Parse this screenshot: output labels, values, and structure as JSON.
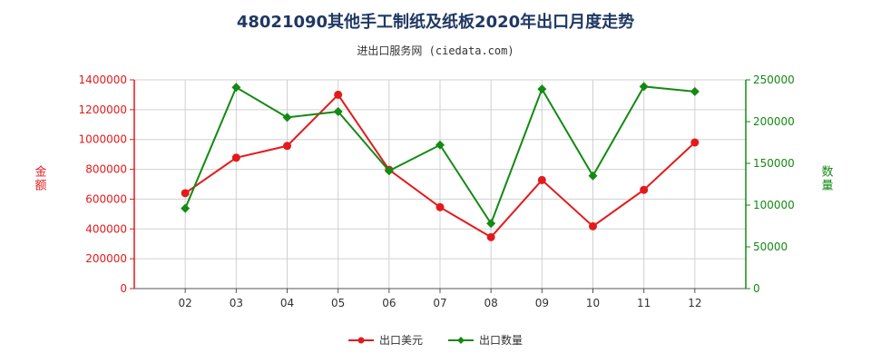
{
  "title": "48021090其他手工制纸及纸板2020年出口月度走势",
  "subtitle": "进出口服务网 (ciedata.com)",
  "colors": {
    "left_axis": "#e31a1c",
    "right_axis": "#138a13",
    "grid": "#d0d0d0",
    "title": "#1f3864"
  },
  "chart_data": {
    "type": "line",
    "categories": [
      "02",
      "03",
      "04",
      "05",
      "06",
      "07",
      "08",
      "09",
      "10",
      "11",
      "12"
    ],
    "series": [
      {
        "name": "出口美元",
        "axis": "left",
        "color": "#e31a1c",
        "marker": "circle",
        "values": [
          640000,
          878000,
          957000,
          1300000,
          797000,
          546000,
          345000,
          728000,
          418000,
          662000,
          980000
        ]
      },
      {
        "name": "出口数量",
        "axis": "right",
        "color": "#138a13",
        "marker": "diamond",
        "values": [
          96000,
          241000,
          205000,
          212000,
          141000,
          172000,
          78000,
          239000,
          135000,
          242000,
          236000
        ]
      }
    ],
    "y_left": {
      "label": "金额",
      "ylim": [
        0,
        1400000
      ],
      "ticks": [
        0,
        200000,
        400000,
        600000,
        800000,
        1000000,
        1200000,
        1400000
      ]
    },
    "y_right": {
      "label": "数量",
      "ylim": [
        0,
        250000
      ],
      "ticks": [
        0,
        50000,
        100000,
        150000,
        200000,
        250000
      ]
    },
    "grid": true,
    "legend_position": "bottom-center"
  }
}
